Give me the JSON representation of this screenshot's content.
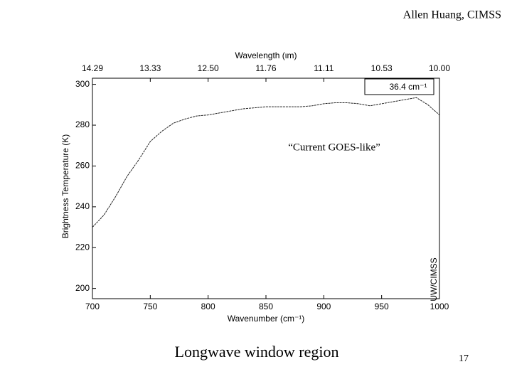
{
  "header": {
    "author": "Allen Huang, CIMSS"
  },
  "footer": {
    "caption": "Longwave window region",
    "page": "17"
  },
  "chart_data": {
    "type": "line",
    "x_label": "Wavenumber (cm⁻¹)",
    "x2_label": "Wavelength (ιm)",
    "y_label": "Brightness Temperature (K)",
    "annotation": "“Current GOES-like”",
    "watermark": "UW/CIMSS",
    "x": [
      700,
      710,
      720,
      730,
      740,
      750,
      760,
      770,
      780,
      790,
      800,
      810,
      820,
      830,
      840,
      850,
      860,
      870,
      880,
      890,
      900,
      910,
      920,
      930,
      940,
      950,
      960,
      970,
      980,
      990,
      1000
    ],
    "series": [
      {
        "name": "36.4 cm⁻¹",
        "color": "#222222",
        "values": [
          230,
          236,
          245,
          255,
          263,
          272,
          277,
          281,
          283,
          284.5,
          285,
          286,
          287,
          288,
          288.5,
          289,
          289,
          289,
          289,
          289.5,
          290.5,
          291,
          291,
          290.5,
          289.5,
          290.5,
          291.5,
          292.5,
          293.5,
          290,
          285
        ]
      }
    ],
    "xlim": [
      700,
      1000
    ],
    "ylim": [
      195,
      303
    ],
    "xticks": [
      700,
      750,
      800,
      850,
      900,
      950,
      1000
    ],
    "x2ticks": [
      {
        "value": 700,
        "label": "14.29"
      },
      {
        "value": 750,
        "label": "13.33"
      },
      {
        "value": 800,
        "label": "12.50"
      },
      {
        "value": 850,
        "label": "11.76"
      },
      {
        "value": 900,
        "label": "11.11"
      },
      {
        "value": 950,
        "label": "10.53"
      },
      {
        "value": 1000,
        "label": "10.00"
      }
    ],
    "yticks": [
      200,
      220,
      240,
      260,
      280,
      300
    ],
    "legend": "upper right"
  }
}
